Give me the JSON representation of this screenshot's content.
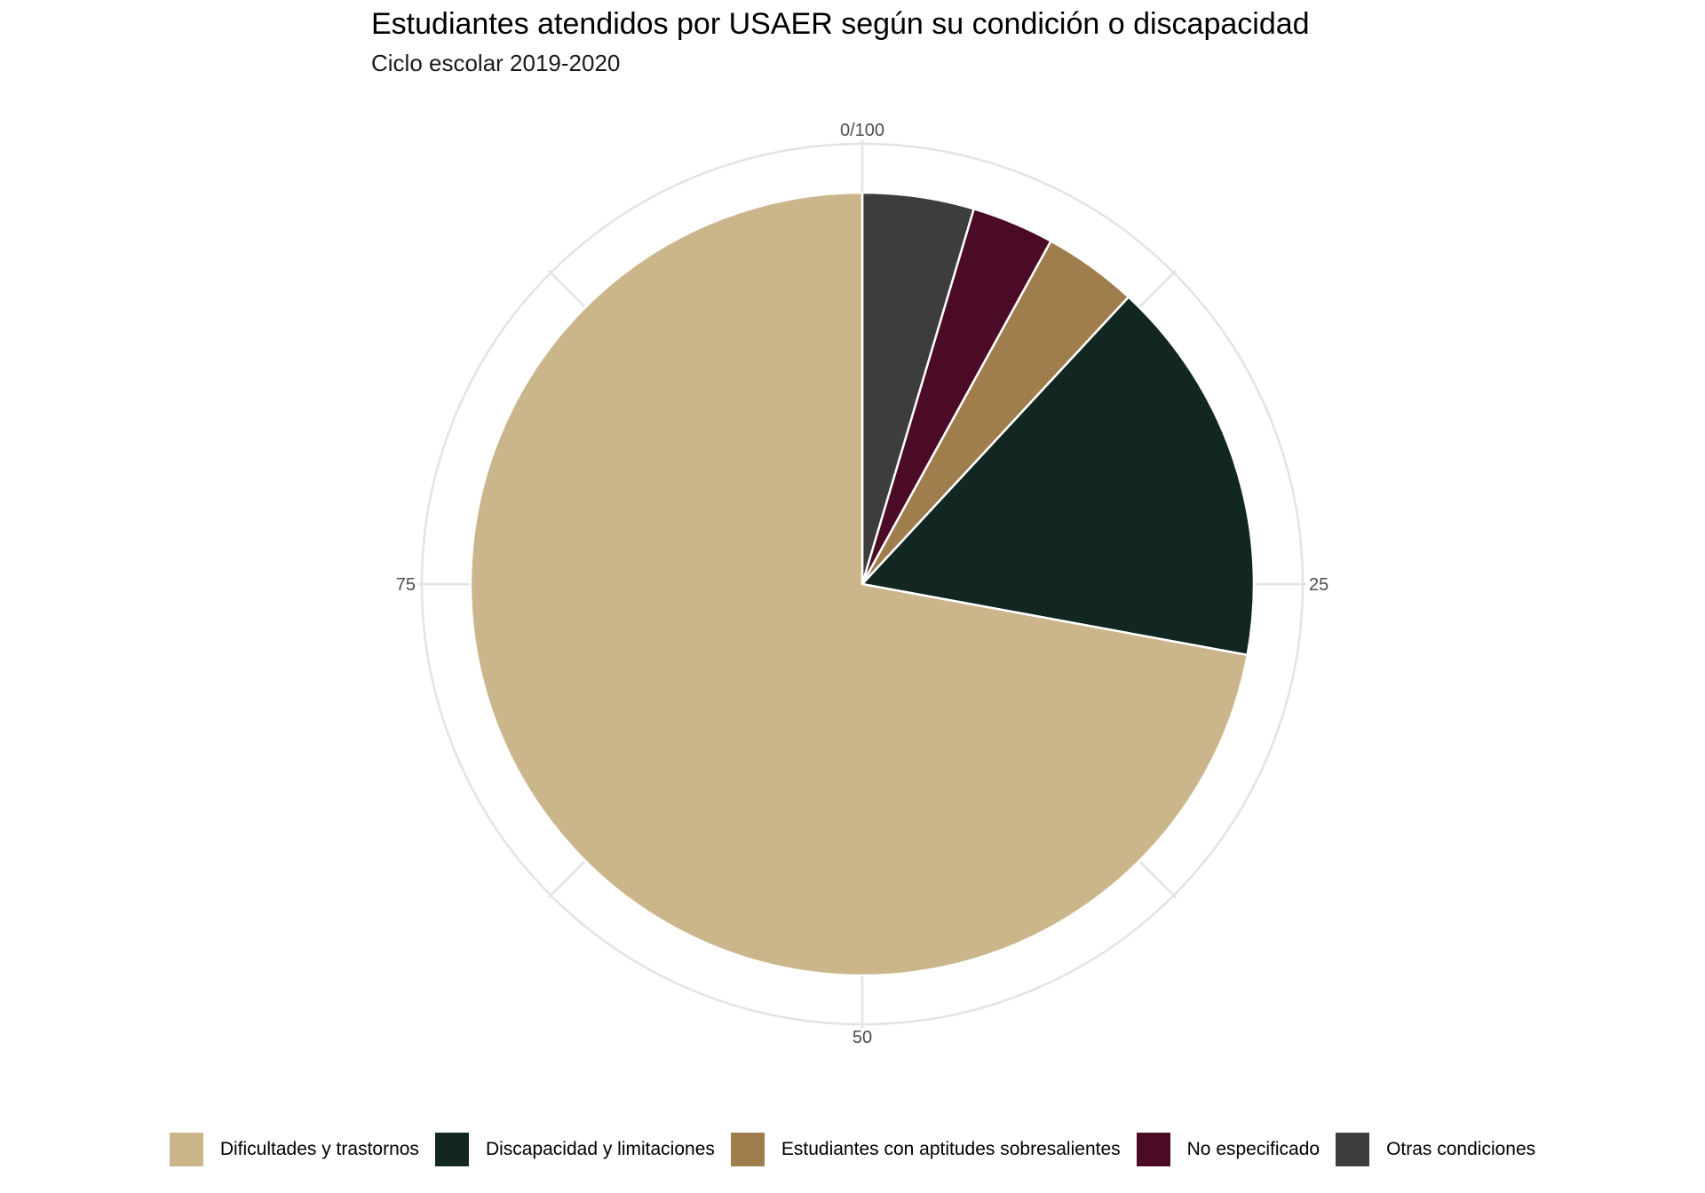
{
  "chart_data": {
    "type": "pie",
    "title": "Estudiantes atendidos por USAER según su condición o discapacidad",
    "subtitle": "Ciclo escolar 2019-2020",
    "direction": "clockwise",
    "start": "top",
    "slices": [
      {
        "label": "Otras condiciones",
        "value": 4.6,
        "color": "#3d3d3d"
      },
      {
        "label": "No especificado",
        "value": 3.4,
        "color": "#4b0a25"
      },
      {
        "label": "Estudiantes con aptitudes sobresalientes",
        "value": 3.9,
        "color": "#a07d4c"
      },
      {
        "label": "Discapacidad y limitaciones",
        "value": 16.0,
        "color": "#122622"
      },
      {
        "label": "Dificultades y trastornos",
        "value": 72.1,
        "color": "#cbb58a"
      }
    ],
    "axis_ticks": [
      {
        "value": 0,
        "label": "0/100"
      },
      {
        "value": 25,
        "label": "25"
      },
      {
        "value": 50,
        "label": "50"
      },
      {
        "value": 75,
        "label": "75"
      }
    ],
    "grid": true,
    "grid_color": "#e3e3e3",
    "legend_position": "bottom",
    "legend": [
      {
        "label": "Dificultades y trastornos",
        "color": "#cbb58a"
      },
      {
        "label": "Discapacidad y limitaciones",
        "color": "#122622"
      },
      {
        "label": "Estudiantes con aptitudes sobresalientes",
        "color": "#a07d4c"
      },
      {
        "label": "No especificado",
        "color": "#4b0a25"
      },
      {
        "label": "Otras condiciones",
        "color": "#3d3d3d"
      }
    ]
  }
}
